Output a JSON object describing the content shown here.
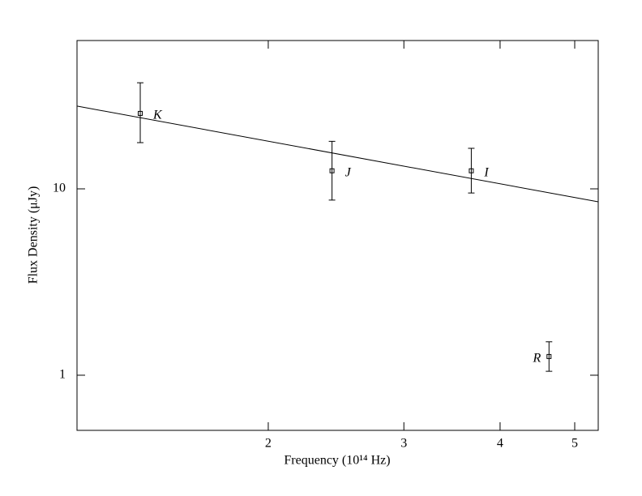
{
  "chart_data": {
    "type": "scatter",
    "x_label": "Frequency (10¹⁴ Hz)",
    "y_label": "Flux Density (μJy)",
    "log_x": true,
    "log_y": true,
    "xlim": [
      1.129,
      5.364
    ],
    "ylim": [
      0.506,
      62.5
    ],
    "xticks": [
      2,
      3,
      4,
      5
    ],
    "yticks": [
      1,
      10
    ],
    "color": "#000000",
    "series": [
      {
        "x": [
          1.364,
          2.42,
          3.67,
          4.63
        ],
        "values": [
          25.4,
          12.5,
          12.5,
          1.26
        ],
        "yerr_minus": [
          7.7,
          3.8,
          3.0,
          0.21
        ],
        "yerr_plus": [
          11.7,
          5.5,
          4.0,
          0.25
        ],
        "point_labels": [
          "K",
          "J",
          "I",
          "R"
        ]
      },
      {
        "x": [
          1.129,
          5.364
        ],
        "values": [
          27.8,
          8.52
        ],
        "style": "line"
      }
    ]
  }
}
